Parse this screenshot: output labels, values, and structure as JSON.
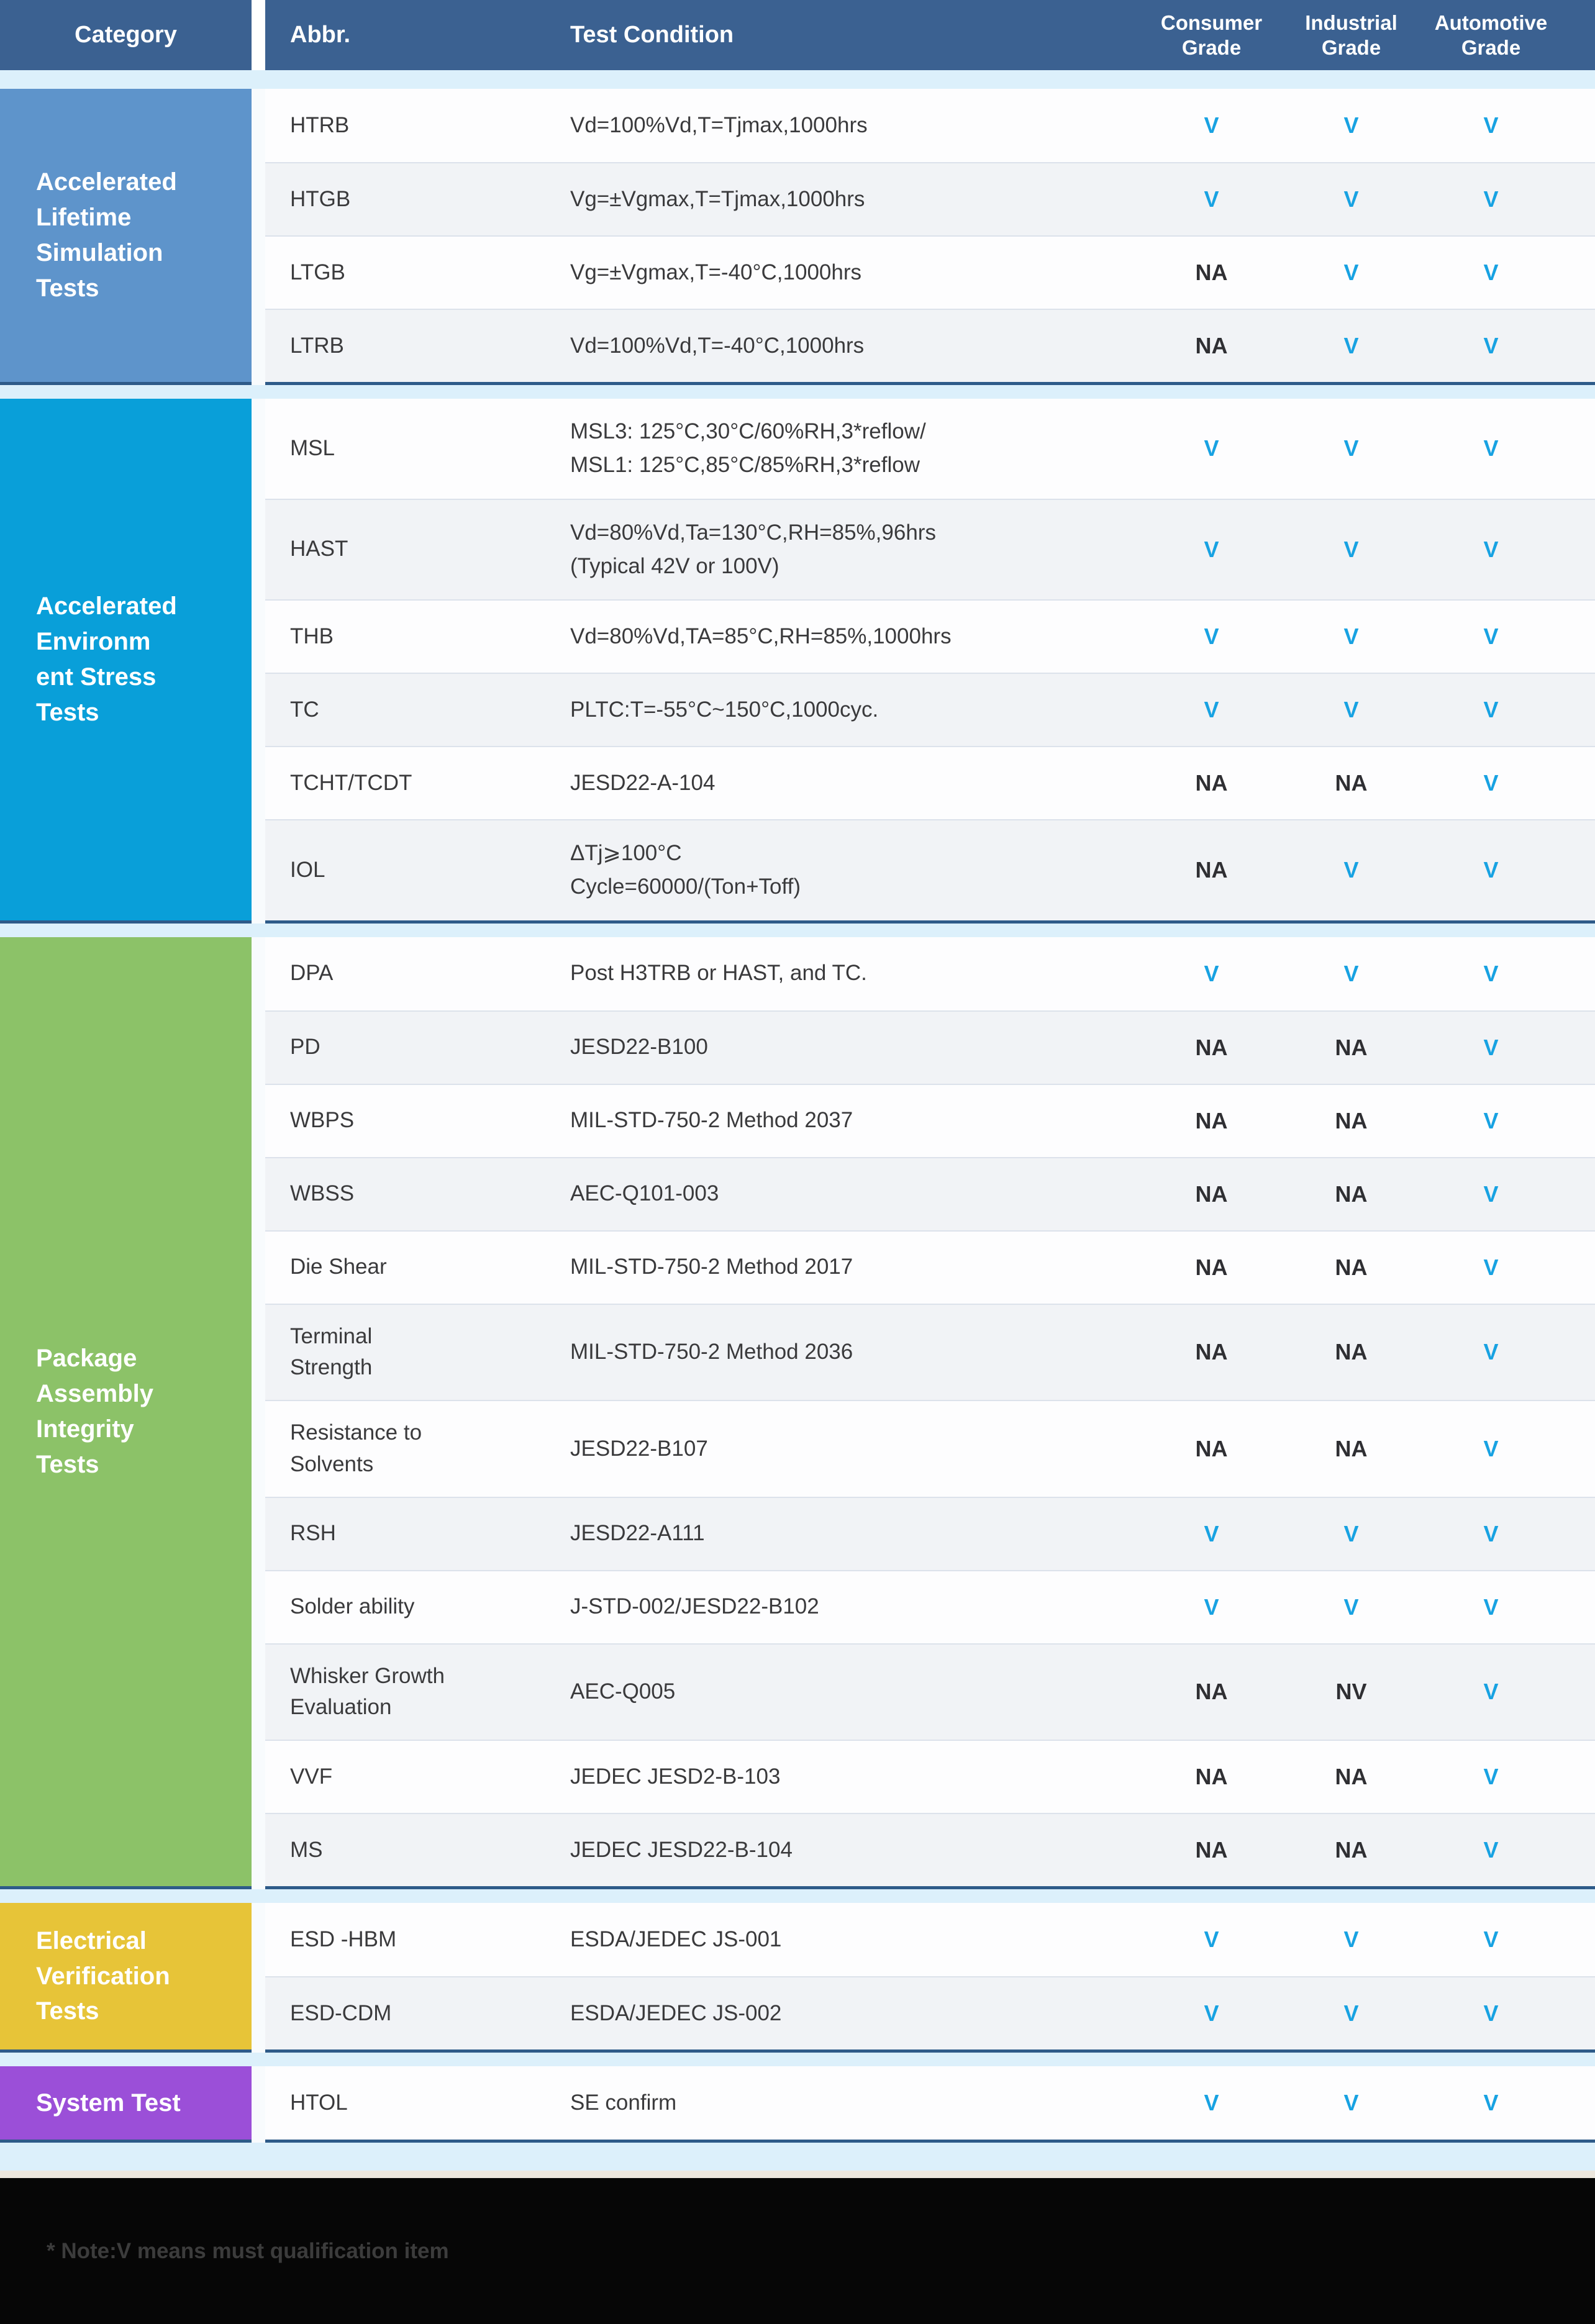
{
  "header": {
    "category": "Category",
    "abbr": "Abbr.",
    "test_condition": "Test Condition",
    "grades": [
      "Consumer\nGrade",
      "Industrial\nGrade",
      "Automotive\nGrade"
    ]
  },
  "colors": {
    "header_bg": "#3b6191",
    "pass_mark": "#18a2e2",
    "na_mark": "#2f2f33",
    "section_border": "#2e5b89",
    "page_bg": "#dcf0fb"
  },
  "sections": [
    {
      "category": "Accelerated\nLifetime\nSimulation\nTests",
      "color": "#5e94cb",
      "rows": [
        {
          "abbr": "HTRB",
          "condition": "Vd=100%Vd,T=Tjmax,1000hrs",
          "grades": [
            "V",
            "V",
            "V"
          ]
        },
        {
          "abbr": "HTGB",
          "condition": "Vg=±Vgmax,T=Tjmax,1000hrs",
          "grades": [
            "V",
            "V",
            "V"
          ]
        },
        {
          "abbr": "LTGB",
          "condition": "Vg=±Vgmax,T=-40°C,1000hrs",
          "grades": [
            "NA",
            "V",
            "V"
          ]
        },
        {
          "abbr": "LTRB",
          "condition": "Vd=100%Vd,T=-40°C,1000hrs",
          "grades": [
            "NA",
            "V",
            "V"
          ]
        }
      ]
    },
    {
      "category": "Accelerated\nEnvironm\nent  Stress\nTests",
      "color": "#099fd9",
      "rows": [
        {
          "abbr": "MSL",
          "condition": "MSL3: 125°C,30°C/60%RH,3*reflow/\nMSL1: 125°C,85°C/85%RH,3*reflow",
          "grades": [
            "V",
            "V",
            "V"
          ]
        },
        {
          "abbr": "HAST",
          "condition": "Vd=80%Vd,Ta=130°C,RH=85%,96hrs\n(Typical 42V or 100V)",
          "grades": [
            "V",
            "V",
            "V"
          ]
        },
        {
          "abbr": "THB",
          "condition": "Vd=80%Vd,TA=85°C,RH=85%,1000hrs",
          "grades": [
            "V",
            "V",
            "V"
          ]
        },
        {
          "abbr": "TC",
          "condition": "PLTC:T=-55°C~150°C,1000cyc.",
          "grades": [
            "V",
            "V",
            "V"
          ]
        },
        {
          "abbr": "TCHT/TCDT",
          "condition": "JESD22-A-104",
          "grades": [
            "NA",
            "NA",
            "V"
          ]
        },
        {
          "abbr": "IOL",
          "condition": "ΔTj⩾100°C\nCycle=60000/(Ton+Toff)",
          "grades": [
            "NA",
            "V",
            "V"
          ]
        }
      ]
    },
    {
      "category": "Package\nAssembly\nIntegrity\nTests",
      "color": "#8cc268",
      "rows": [
        {
          "abbr": "DPA",
          "condition": "Post H3TRB or HAST, and TC.",
          "grades": [
            "V",
            "V",
            "V"
          ]
        },
        {
          "abbr": "PD",
          "condition": "JESD22-B100",
          "grades": [
            "NA",
            "NA",
            "V"
          ]
        },
        {
          "abbr": "WBPS",
          "condition": "MIL-STD-750-2 Method 2037",
          "grades": [
            "NA",
            "NA",
            "V"
          ]
        },
        {
          "abbr": "WBSS",
          "condition": "AEC-Q101-003",
          "grades": [
            "NA",
            "NA",
            "V"
          ]
        },
        {
          "abbr": "Die Shear",
          "condition": "MIL-STD-750-2 Method 2017",
          "grades": [
            "NA",
            "NA",
            "V"
          ]
        },
        {
          "abbr": "Terminal\nStrength",
          "condition": "MIL-STD-750-2 Method 2036",
          "grades": [
            "NA",
            "NA",
            "V"
          ]
        },
        {
          "abbr": "Resistance to\nSolvents",
          "condition": "JESD22-B107",
          "grades": [
            "NA",
            "NA",
            "V"
          ]
        },
        {
          "abbr": "RSH",
          "condition": "JESD22-A111",
          "grades": [
            "V",
            "V",
            "V"
          ]
        },
        {
          "abbr": "Solder ability",
          "condition": "J-STD-002/JESD22-B102",
          "grades": [
            "V",
            "V",
            "V"
          ]
        },
        {
          "abbr": "Whisker Growth\nEvaluation",
          "condition": "AEC-Q005",
          "grades": [
            "NA",
            "NV",
            "V"
          ]
        },
        {
          "abbr": "VVF",
          "condition": "JEDEC JESD2-B-103",
          "grades": [
            "NA",
            "NA",
            "V"
          ]
        },
        {
          "abbr": "MS",
          "condition": "JEDEC JESD22-B-104",
          "grades": [
            "NA",
            "NA",
            "V"
          ]
        }
      ]
    },
    {
      "category": "Electrical\nVerification\nTests",
      "color": "#e7c438",
      "rows": [
        {
          "abbr": "ESD -HBM",
          "condition": "ESDA/JEDEC JS-001",
          "grades": [
            "V",
            "V",
            "V"
          ]
        },
        {
          "abbr": "ESD-CDM",
          "condition": "ESDA/JEDEC JS-002",
          "grades": [
            "V",
            "V",
            "V"
          ]
        }
      ]
    },
    {
      "category": "System Test",
      "color": "#9b4fd8",
      "rows": [
        {
          "abbr": "HTOL",
          "condition": "SE confirm",
          "grades": [
            "V",
            "V",
            "V"
          ]
        }
      ]
    }
  ],
  "footer": {
    "note": "* Note:V means must qualification item"
  }
}
